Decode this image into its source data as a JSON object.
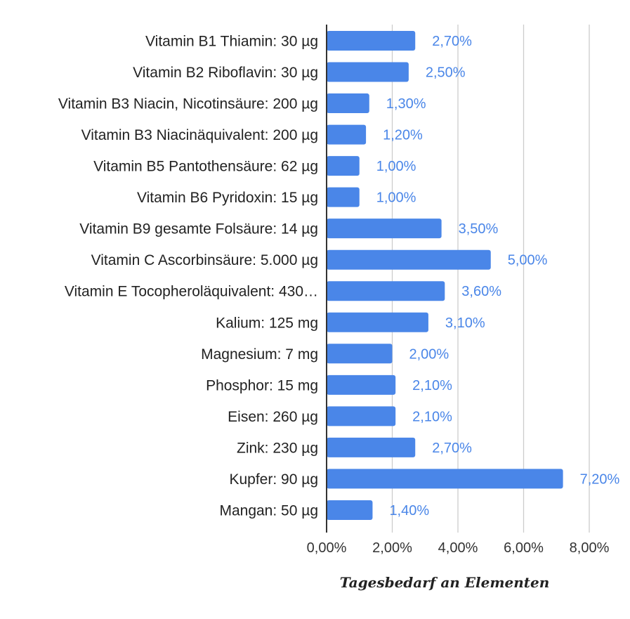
{
  "chart_data": {
    "type": "bar",
    "orientation": "horizontal",
    "categories": [
      "Vitamin B1 Thiamin: 30 µg",
      "Vitamin B2 Riboflavin: 30 µg",
      "Vitamin B3 Niacin, Nicotinsäure: 200 µg",
      "Vitamin B3 Niacinäquivalent: 200 µg",
      "Vitamin B5 Pantothensäure: 62 µg",
      "Vitamin B6 Pyridoxin: 15 µg",
      "Vitamin B9 gesamte Folsäure: 14 µg",
      "Vitamin C Ascorbinsäure: 5.000 µg",
      "Vitamin E Tocopheroläquivalent: 430…",
      "Kalium: 125 mg",
      "Magnesium: 7 mg",
      "Phosphor: 15 mg",
      "Eisen: 260 µg",
      "Zink: 230 µg",
      "Kupfer: 90 µg",
      "Mangan: 50 µg"
    ],
    "values": [
      2.7,
      2.5,
      1.3,
      1.2,
      1.0,
      1.0,
      3.5,
      5.0,
      3.6,
      3.1,
      2.0,
      2.1,
      2.1,
      2.7,
      7.2,
      1.4
    ],
    "value_labels": [
      "2,70%",
      "2,50%",
      "1,30%",
      "1,20%",
      "1,00%",
      "1,00%",
      "3,50%",
      "5,00%",
      "3,60%",
      "3,10%",
      "2,00%",
      "2,10%",
      "2,10%",
      "2,70%",
      "7,20%",
      "1,40%"
    ],
    "xlim": [
      0,
      8
    ],
    "xticks": [
      0,
      2,
      4,
      6,
      8
    ],
    "xtick_labels": [
      "0,00%",
      "2,00%",
      "4,00%",
      "6,00%",
      "8,00%"
    ],
    "xlabel": "Tagesbedarf an Elementen",
    "ylabel": "",
    "grid": "vertical",
    "legend": "none",
    "colors": {
      "bar": "#4a86e8",
      "value_label": "#4a86e8",
      "grid": "#cccccc",
      "axis": "#333333",
      "text": "#222222"
    }
  }
}
